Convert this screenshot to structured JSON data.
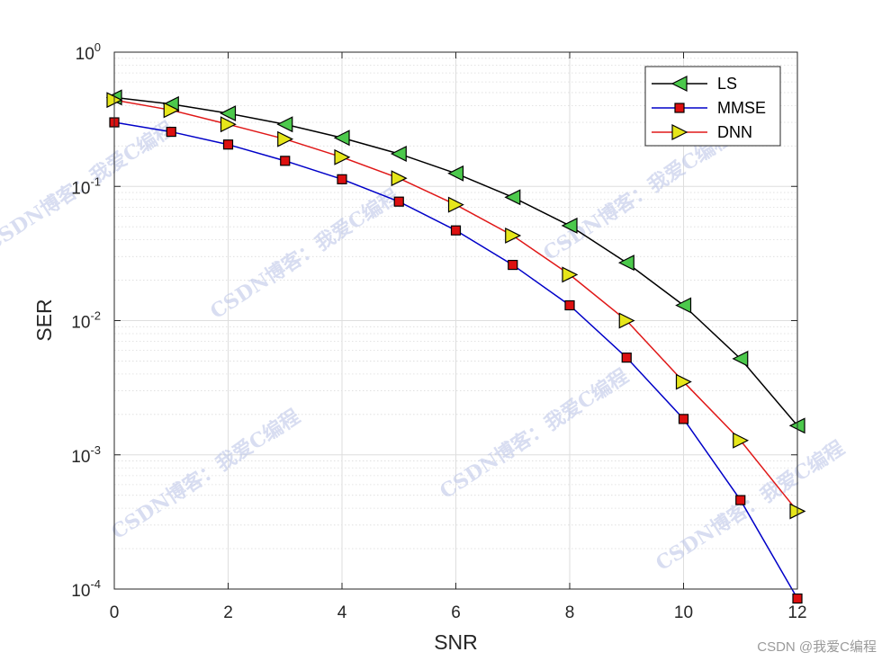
{
  "chart_data": {
    "type": "line",
    "xlabel": "SNR",
    "ylabel": "SER",
    "xlim": [
      0,
      12
    ],
    "ylim": [
      0.0001,
      1
    ],
    "yscale": "log",
    "x_ticks": [
      "0",
      "2",
      "4",
      "6",
      "8",
      "10",
      "12"
    ],
    "y_ticks": [
      {
        "base": "10",
        "exp": "0"
      },
      {
        "base": "10",
        "exp": "-1"
      },
      {
        "base": "10",
        "exp": "-2"
      },
      {
        "base": "10",
        "exp": "-3"
      },
      {
        "base": "10",
        "exp": "-4"
      }
    ],
    "grid": true,
    "legend_position": "top-right",
    "x": [
      0,
      1,
      2,
      3,
      4,
      5,
      6,
      7,
      8,
      9,
      10,
      11,
      12
    ],
    "series": [
      {
        "name": "LS",
        "color": "#000000",
        "marker": "triangle-left",
        "marker_fill": "#4cc94c",
        "values": [
          0.46,
          0.41,
          0.35,
          0.29,
          0.23,
          0.175,
          0.125,
          0.083,
          0.051,
          0.027,
          0.013,
          0.0052,
          0.00165
        ]
      },
      {
        "name": "MMSE",
        "color": "#0000c8",
        "marker": "square",
        "marker_fill": "#dd1010",
        "values": [
          0.3,
          0.255,
          0.205,
          0.155,
          0.113,
          0.077,
          0.047,
          0.026,
          0.013,
          0.0053,
          0.00185,
          0.00046,
          8.5e-05
        ]
      },
      {
        "name": "DNN",
        "color": "#e01818",
        "marker": "triangle-right",
        "marker_fill": "#e6e61a",
        "values": [
          0.44,
          0.37,
          0.29,
          0.225,
          0.165,
          0.115,
          0.073,
          0.043,
          0.022,
          0.01,
          0.0035,
          0.00128,
          0.00038
        ]
      }
    ]
  },
  "watermark": "CSDN博客：我爱C编程",
  "credit": "CSDN @我爱C编程"
}
